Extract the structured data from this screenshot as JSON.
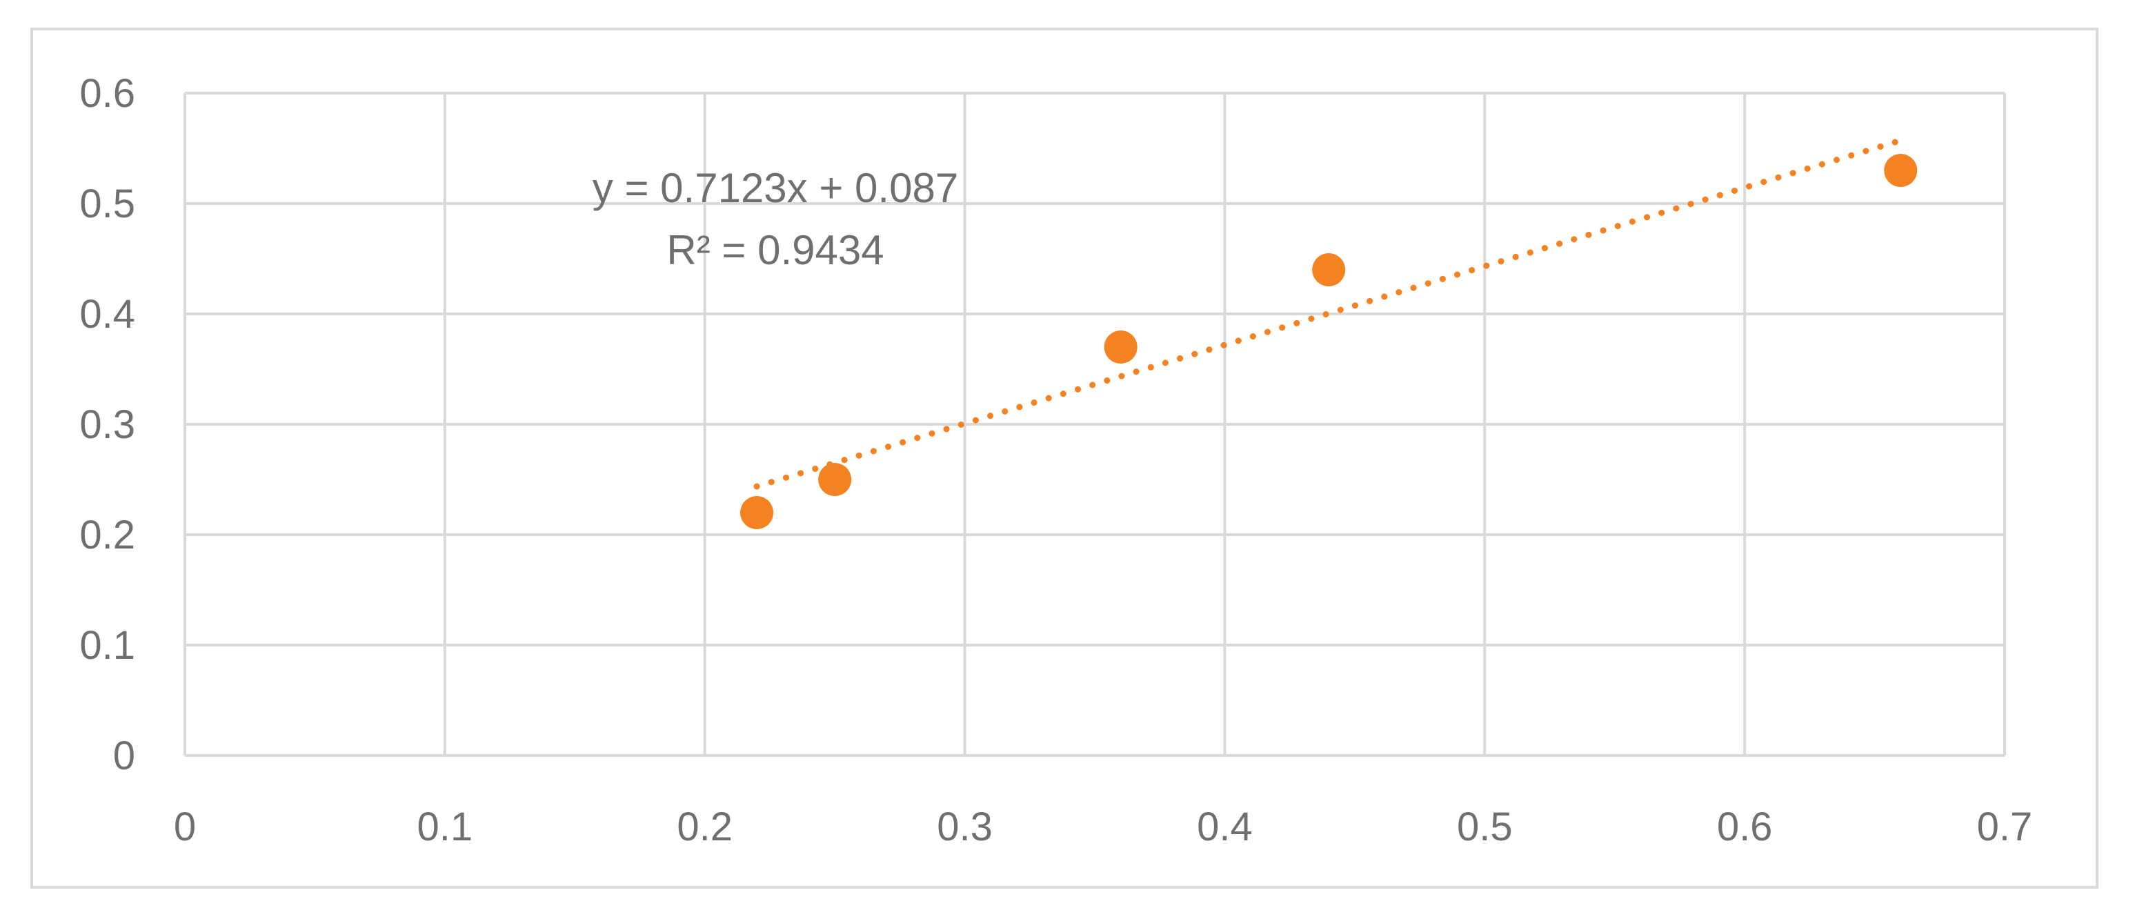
{
  "chart_data": {
    "type": "scatter",
    "title": "",
    "xlabel": "",
    "ylabel": "",
    "xlim": [
      0,
      0.7
    ],
    "ylim": [
      0,
      0.6
    ],
    "x_ticks": [
      "0",
      "0.1",
      "0.2",
      "0.3",
      "0.4",
      "0.5",
      "0.6",
      "0.7"
    ],
    "y_ticks": [
      "0",
      "0.1",
      "0.2",
      "0.3",
      "0.4",
      "0.5",
      "0.6"
    ],
    "grid": true,
    "legend": "none",
    "series": [
      {
        "x": [
          0.22,
          0.25,
          0.36,
          0.44,
          0.66
        ],
        "y": [
          0.22,
          0.25,
          0.37,
          0.44,
          0.53
        ],
        "color": "#f58220",
        "marker": "circle"
      }
    ],
    "trendline": {
      "type": "linear",
      "slope": 0.7123,
      "intercept": 0.087,
      "x_range": [
        0.22,
        0.66
      ],
      "style": "dotted",
      "color": "#f58220",
      "equation_label": "y = 0.7123x + 0.087",
      "r2_label": "R² = 0.9434"
    },
    "colors": {
      "grid": "#d9d9d9",
      "axis_text": "#6f6f6f",
      "border": "#d9d9d9"
    }
  }
}
